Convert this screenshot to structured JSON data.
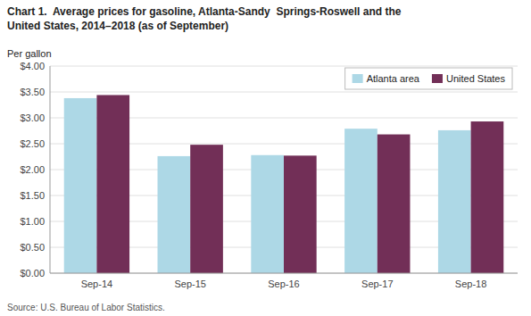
{
  "chart_data": {
    "type": "bar",
    "title": "Chart 1.  Average prices for gasoline, Atlanta-Sandy  Springs-Roswell and the\nUnited States, 2014–2018 (as of September)",
    "y_label": "Per gallon",
    "source": "Source: U.S. Bureau of Labor Statistics.",
    "categories": [
      "Sep-14",
      "Sep-15",
      "Sep-16",
      "Sep-17",
      "Sep-18"
    ],
    "series": [
      {
        "name": "Atlanta area",
        "color": "#add8e6",
        "values": [
          3.38,
          2.26,
          2.28,
          2.79,
          2.76
        ]
      },
      {
        "name": "United States",
        "color": "#722f57",
        "values": [
          3.44,
          2.48,
          2.27,
          2.68,
          2.93
        ]
      }
    ],
    "ylim": [
      0,
      4.0
    ],
    "yticks": [
      {
        "value": 0.0,
        "label": "$0.00"
      },
      {
        "value": 0.5,
        "label": "$0.50"
      },
      {
        "value": 1.0,
        "label": "$1.00"
      },
      {
        "value": 1.5,
        "label": "$1.50"
      },
      {
        "value": 2.0,
        "label": "$2.00"
      },
      {
        "value": 2.5,
        "label": "$2.50"
      },
      {
        "value": 3.0,
        "label": "$3.00"
      },
      {
        "value": 3.5,
        "label": "$3.50"
      },
      {
        "value": 4.0,
        "label": "$4.00"
      }
    ],
    "grid": true,
    "legend": "upper right"
  }
}
